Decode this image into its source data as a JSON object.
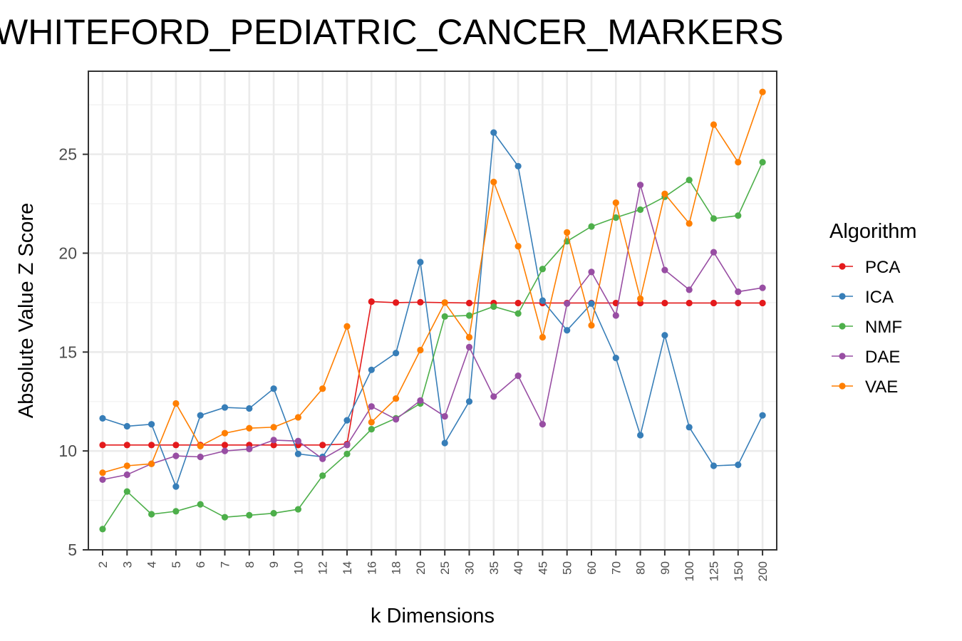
{
  "chart_data": {
    "type": "line",
    "title": "WHITEFORD_PEDIATRIC_CANCER_MARKERS",
    "xlabel": "k Dimensions",
    "ylabel": "Absolute Value Z Score",
    "categories": [
      "2",
      "3",
      "4",
      "5",
      "6",
      "7",
      "8",
      "9",
      "10",
      "12",
      "14",
      "16",
      "18",
      "20",
      "25",
      "30",
      "35",
      "40",
      "45",
      "50",
      "60",
      "70",
      "80",
      "90",
      "100",
      "125",
      "150",
      "200"
    ],
    "y_ticks": [
      5,
      10,
      15,
      20,
      25
    ],
    "ylim": [
      5,
      29.2
    ],
    "grid": true,
    "legend": {
      "title": "Algorithm",
      "position": "right"
    },
    "series": [
      {
        "name": "PCA",
        "color": "#e41a1c",
        "values": [
          10.3,
          10.3,
          10.3,
          10.3,
          10.3,
          10.3,
          10.3,
          10.3,
          10.3,
          10.3,
          10.35,
          17.55,
          17.5,
          17.52,
          17.5,
          17.48,
          17.48,
          17.48,
          17.48,
          17.48,
          17.48,
          17.48,
          17.48,
          17.48,
          17.48,
          17.48,
          17.48,
          17.48
        ]
      },
      {
        "name": "ICA",
        "color": "#377eb8",
        "values": [
          11.65,
          11.25,
          11.35,
          8.2,
          11.8,
          12.2,
          12.15,
          13.15,
          9.85,
          9.7,
          11.55,
          14.1,
          14.95,
          19.55,
          10.4,
          12.5,
          26.1,
          24.4,
          17.6,
          16.1,
          17.45,
          14.7,
          10.8,
          15.85,
          11.2,
          9.25,
          9.3,
          11.8
        ]
      },
      {
        "name": "NMF",
        "color": "#4daf4a",
        "values": [
          6.05,
          7.95,
          6.8,
          6.95,
          7.3,
          6.65,
          6.75,
          6.85,
          7.05,
          8.75,
          9.85,
          11.1,
          11.65,
          12.4,
          16.8,
          16.85,
          17.3,
          16.95,
          19.2,
          20.6,
          21.35,
          21.8,
          22.2,
          22.85,
          23.7,
          21.75,
          21.9,
          24.6
        ]
      },
      {
        "name": "DAE",
        "color": "#984ea3",
        "values": [
          8.55,
          8.8,
          9.35,
          9.75,
          9.7,
          10.0,
          10.1,
          10.55,
          10.5,
          9.6,
          10.3,
          12.25,
          11.6,
          12.55,
          11.75,
          15.25,
          12.75,
          13.8,
          11.35,
          17.45,
          19.05,
          16.85,
          23.45,
          19.15,
          18.15,
          20.05,
          18.05,
          18.25
        ]
      },
      {
        "name": "VAE",
        "color": "#ff7f00",
        "values": [
          8.9,
          9.25,
          9.35,
          12.4,
          10.25,
          10.9,
          11.15,
          11.2,
          11.7,
          13.15,
          16.3,
          11.45,
          12.65,
          15.1,
          17.5,
          15.75,
          23.6,
          20.35,
          15.75,
          21.05,
          16.35,
          22.55,
          17.7,
          23.0,
          21.5,
          26.5,
          24.6,
          28.15
        ]
      }
    ]
  }
}
